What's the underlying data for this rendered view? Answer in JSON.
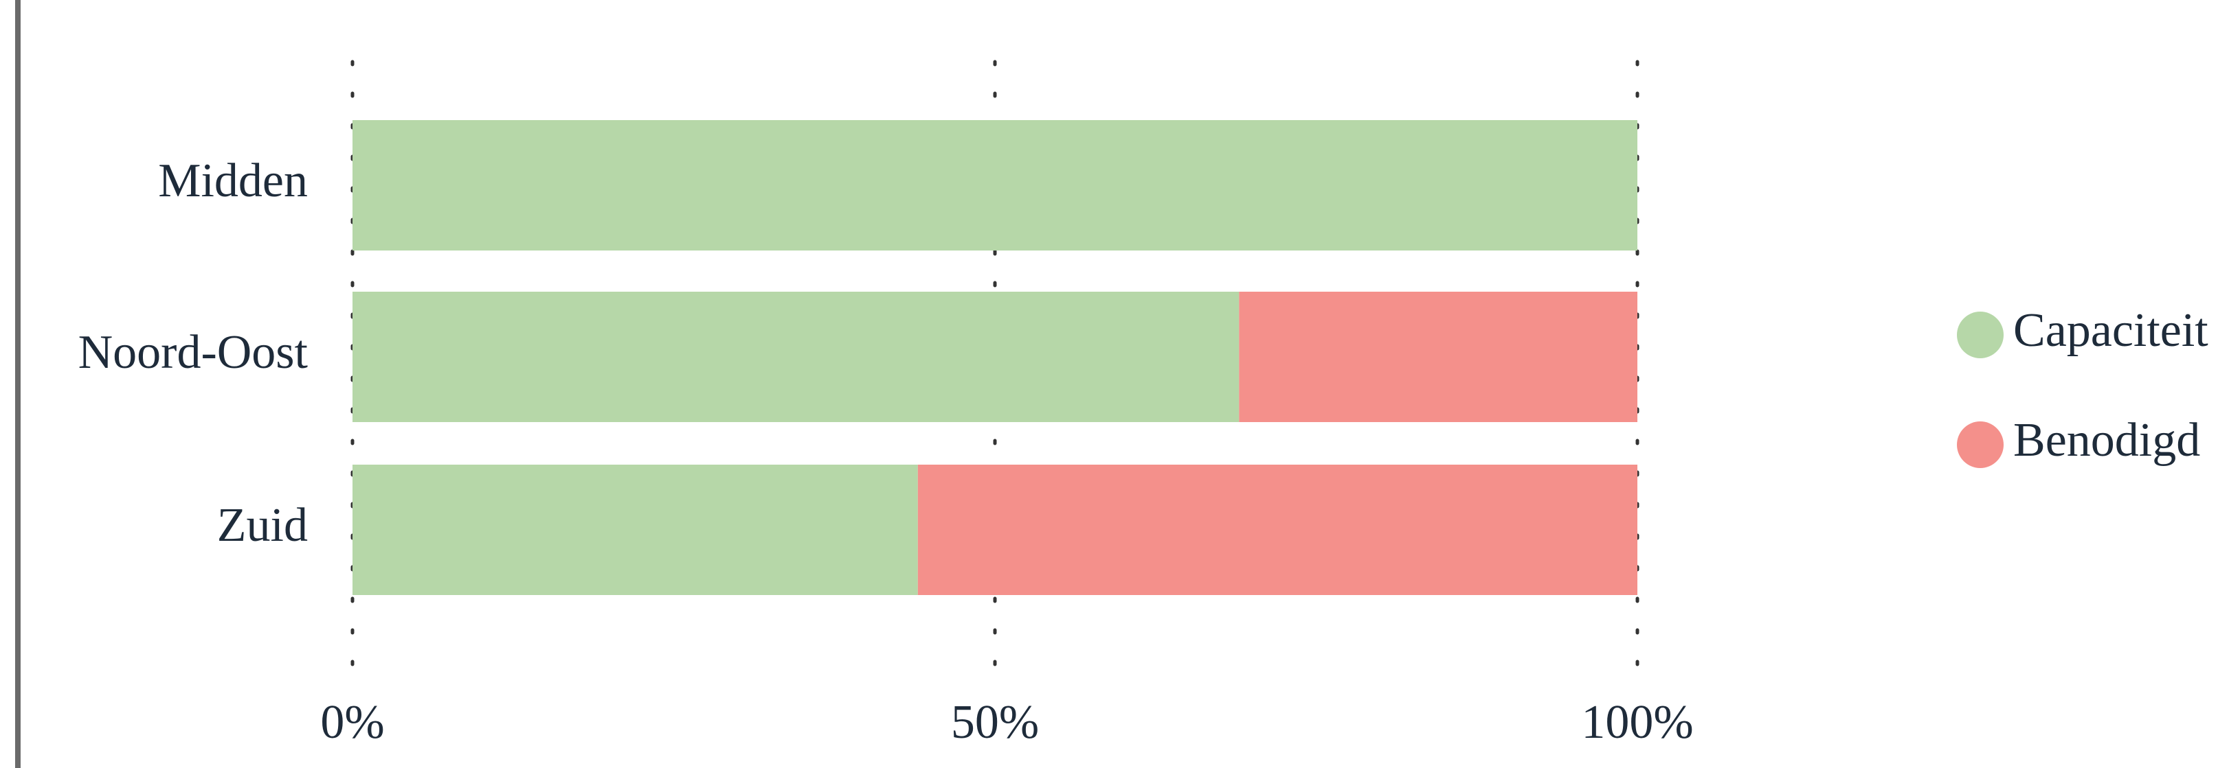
{
  "chart_data": {
    "type": "bar",
    "orientation": "horizontal",
    "stacked": true,
    "normalized": true,
    "categories": [
      "Midden",
      "Noord-Oost",
      "Zuid"
    ],
    "series": [
      {
        "name": "Capaciteit",
        "values": [
          100,
          69,
          44
        ],
        "color": "#b6d7a8"
      },
      {
        "name": "Benodigd",
        "values": [
          0,
          31,
          56
        ],
        "color": "#f4908b"
      }
    ],
    "x_ticks": [
      "0%",
      "50%",
      "100%"
    ],
    "x_tick_values": [
      0,
      50,
      100
    ],
    "xlim": [
      0,
      100
    ],
    "grid": "vertical dotted",
    "legend": "right"
  },
  "colors": {
    "text": "#1e2b3a",
    "border": "#6b6b6b"
  }
}
